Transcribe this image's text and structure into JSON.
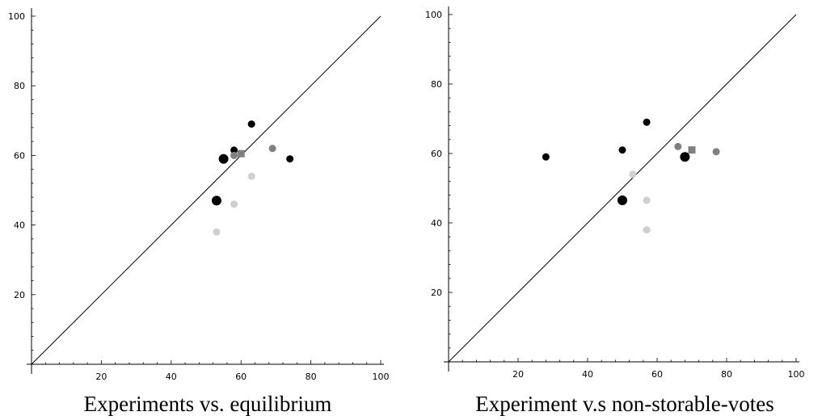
{
  "chart_data": [
    {
      "type": "scatter",
      "title": "Experiments vs. equilibrium",
      "xlabel": "",
      "ylabel": "",
      "xlim": [
        0,
        100
      ],
      "ylim": [
        0,
        100
      ],
      "xticks": [
        "20",
        "40",
        "60",
        "80",
        "100"
      ],
      "yticks": [
        "20",
        "40",
        "60",
        "80",
        "100"
      ],
      "grid": false,
      "reference_line": {
        "x": [
          0,
          100
        ],
        "y": [
          0,
          100
        ]
      },
      "points": [
        {
          "x": 53,
          "y": 47,
          "color": "#000000",
          "marker": "circle",
          "size": "large"
        },
        {
          "x": 55,
          "y": 59,
          "color": "#000000",
          "marker": "circle",
          "size": "large"
        },
        {
          "x": 58,
          "y": 61.5,
          "color": "#000000",
          "marker": "circle",
          "size": "small"
        },
        {
          "x": 63,
          "y": 69,
          "color": "#000000",
          "marker": "circle",
          "size": "small"
        },
        {
          "x": 74,
          "y": 59,
          "color": "#000000",
          "marker": "circle",
          "size": "small"
        },
        {
          "x": 58,
          "y": 60,
          "color": "#808080",
          "marker": "circle",
          "size": "small"
        },
        {
          "x": 69,
          "y": 62,
          "color": "#808080",
          "marker": "circle",
          "size": "small"
        },
        {
          "x": 60,
          "y": 60.5,
          "color": "#808080",
          "marker": "square",
          "size": "small"
        },
        {
          "x": 63,
          "y": 54,
          "color": "#cfcfcf",
          "marker": "circle",
          "size": "small"
        },
        {
          "x": 58,
          "y": 46,
          "color": "#cfcfcf",
          "marker": "circle",
          "size": "small"
        },
        {
          "x": 53,
          "y": 38,
          "color": "#cfcfcf",
          "marker": "circle",
          "size": "small"
        }
      ]
    },
    {
      "type": "scatter",
      "title": "Experiment v.s non-storable-votes",
      "xlabel": "",
      "ylabel": "",
      "xlim": [
        0,
        100
      ],
      "ylim": [
        0,
        100
      ],
      "xticks": [
        "20",
        "40",
        "60",
        "80",
        "100"
      ],
      "yticks": [
        "20",
        "40",
        "60",
        "80",
        "100"
      ],
      "grid": false,
      "reference_line": {
        "x": [
          0,
          100
        ],
        "y": [
          0,
          100
        ]
      },
      "points": [
        {
          "x": 28,
          "y": 59,
          "color": "#000000",
          "marker": "circle",
          "size": "small"
        },
        {
          "x": 50,
          "y": 61,
          "color": "#000000",
          "marker": "circle",
          "size": "small"
        },
        {
          "x": 57,
          "y": 69,
          "color": "#000000",
          "marker": "circle",
          "size": "small"
        },
        {
          "x": 50,
          "y": 46.5,
          "color": "#000000",
          "marker": "circle",
          "size": "large"
        },
        {
          "x": 68,
          "y": 59,
          "color": "#000000",
          "marker": "circle",
          "size": "large"
        },
        {
          "x": 66,
          "y": 62,
          "color": "#808080",
          "marker": "circle",
          "size": "small"
        },
        {
          "x": 77,
          "y": 60.5,
          "color": "#808080",
          "marker": "circle",
          "size": "small"
        },
        {
          "x": 70,
          "y": 61,
          "color": "#808080",
          "marker": "square",
          "size": "small"
        },
        {
          "x": 53,
          "y": 54,
          "color": "#cfcfcf",
          "marker": "circle",
          "size": "small"
        },
        {
          "x": 57,
          "y": 46.5,
          "color": "#cfcfcf",
          "marker": "circle",
          "size": "small"
        },
        {
          "x": 57,
          "y": 38,
          "color": "#cfcfcf",
          "marker": "circle",
          "size": "small"
        }
      ]
    }
  ]
}
